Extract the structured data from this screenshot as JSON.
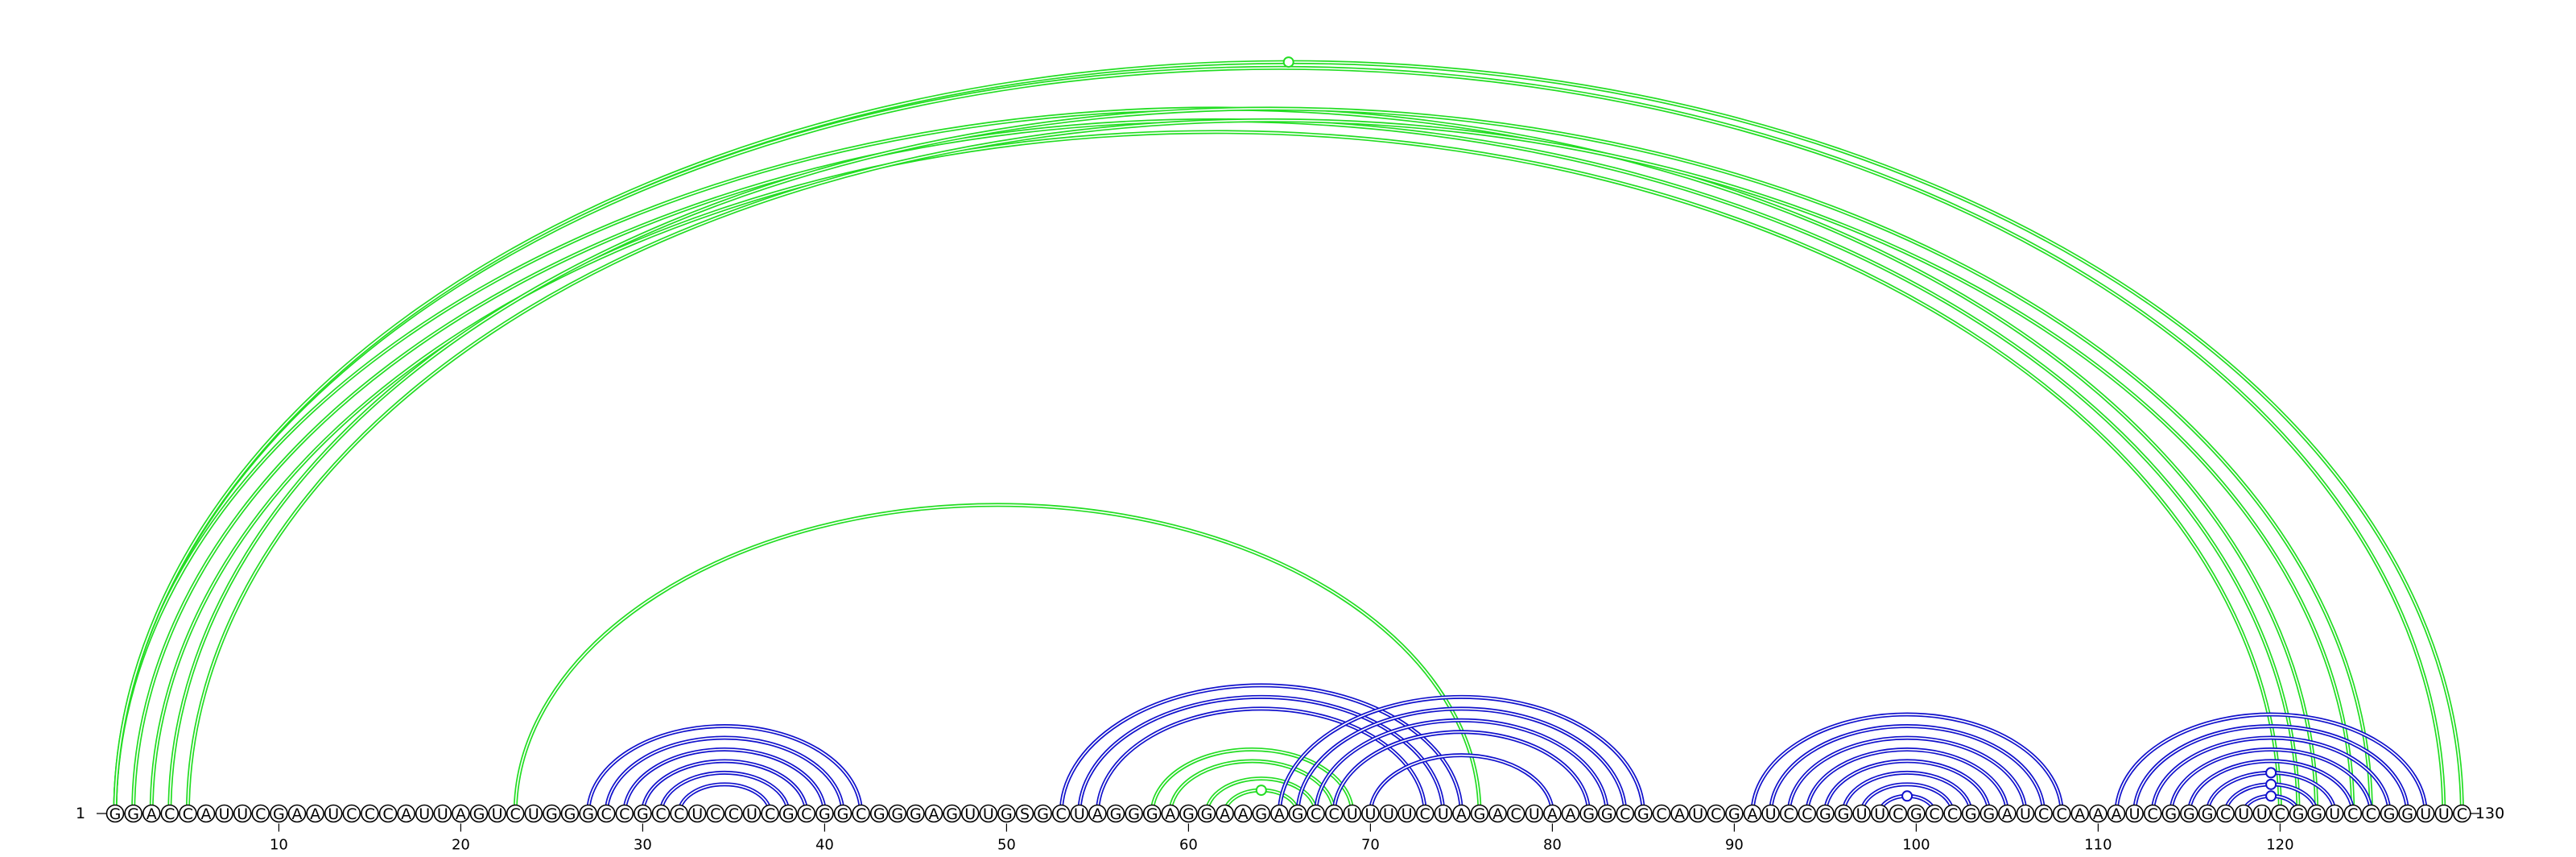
{
  "sequence": "GGACCAUUCGAAUCCCAUUAGUCUGGGCCGCCUCCUCGCGGCGGGAGUUGSGCUAGGGAGGAAGAGCCUUUUCUAGACUAAGGCGCAUCGAUCCGGUUCGCCGGAUCCAAAUCGGGCUUCGGUCCGGUUC",
  "start_label": "1",
  "end_label": "130",
  "position_ticks": [
    10,
    20,
    30,
    40,
    50,
    60,
    70,
    80,
    90,
    100,
    110,
    120
  ],
  "colors": {
    "green": "#22dd22",
    "blue": "#1111cc",
    "text": "#000000"
  },
  "arc_groups": [
    {
      "color": "green",
      "pairs": [
        [
          1,
          122
        ],
        [
          2,
          121
        ],
        [
          3,
          120
        ],
        [
          4,
          125
        ],
        [
          5,
          124
        ]
      ]
    },
    {
      "color": "green",
      "pairs": [
        [
          1,
          129
        ],
        [
          1,
          130
        ]
      ]
    },
    {
      "color": "green",
      "pairs": [
        [
          23,
          76
        ]
      ]
    },
    {
      "color": "blue",
      "pairs": [
        [
          27,
          42
        ],
        [
          28,
          41
        ],
        [
          29,
          40
        ],
        [
          30,
          39
        ],
        [
          31,
          38
        ],
        [
          32,
          37
        ]
      ]
    },
    {
      "color": "blue",
      "pairs": [
        [
          53,
          75
        ],
        [
          54,
          74
        ],
        [
          55,
          73
        ]
      ]
    },
    {
      "color": "green",
      "pairs": [
        [
          58,
          69
        ],
        [
          59,
          68
        ],
        [
          61,
          67
        ],
        [
          62,
          66
        ]
      ]
    },
    {
      "color": "blue",
      "pairs": [
        [
          65,
          85
        ],
        [
          66,
          84
        ],
        [
          67,
          83
        ],
        [
          68,
          82
        ],
        [
          70,
          80
        ]
      ]
    },
    {
      "color": "blue",
      "pairs": [
        [
          91,
          108
        ],
        [
          92,
          107
        ],
        [
          93,
          106
        ],
        [
          94,
          105
        ],
        [
          95,
          104
        ],
        [
          96,
          103
        ],
        [
          97,
          102
        ],
        [
          98,
          101
        ]
      ]
    },
    {
      "color": "blue",
      "pairs": [
        [
          111,
          128
        ],
        [
          112,
          127
        ],
        [
          113,
          126
        ],
        [
          114,
          125
        ],
        [
          115,
          124
        ],
        [
          116,
          123
        ],
        [
          117,
          122
        ],
        [
          118,
          121
        ]
      ]
    }
  ]
}
